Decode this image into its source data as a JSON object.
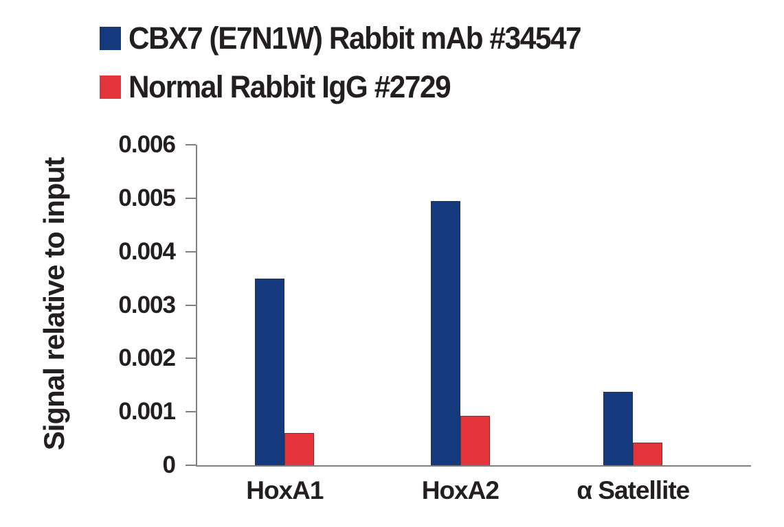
{
  "chart_data": {
    "type": "bar",
    "title": "",
    "categories": [
      "HoxA1",
      "HoxA2",
      "α Satellite"
    ],
    "series": [
      {
        "name": "CBX7 (E7N1W) Rabbit mAb #34547",
        "color": "#15397d",
        "values": [
          0.0035,
          0.00495,
          0.00138
        ]
      },
      {
        "name": "Normal Rabbit IgG #2729",
        "color": "#e2343a",
        "values": [
          0.0006,
          0.00093,
          0.00043
        ]
      }
    ],
    "xlabel": "",
    "ylabel": "Signal relative to input",
    "ylim": [
      0,
      0.006
    ],
    "yticks": [
      0,
      0.001,
      0.002,
      0.003,
      0.004,
      0.005,
      0.006
    ],
    "ytick_labels": [
      "0",
      "0.001",
      "0.002",
      "0.003",
      "0.004",
      "0.005",
      "0.006"
    ],
    "grid": false,
    "legend_position": "top-left",
    "colors": {
      "axis": "#808080",
      "text": "#231f20",
      "background": "#ffffff"
    }
  }
}
